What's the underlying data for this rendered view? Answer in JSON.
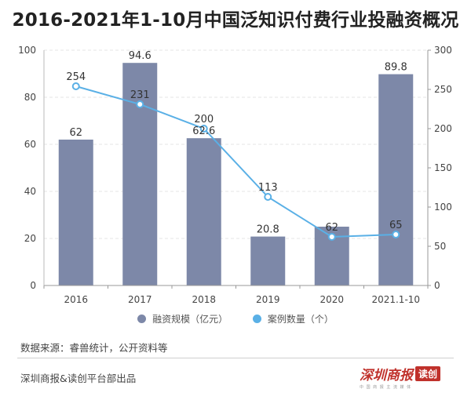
{
  "title": "2016-2021年1-10月中国泛知识付费行业投融资概况",
  "legend": {
    "bar_label": "融资规模（亿元）",
    "line_label": "案例数量（个）"
  },
  "source_note": "数据来源：睿兽统计，公开资料等",
  "footer": {
    "publisher": "深圳商报&读创平台部出品",
    "logo_text": "深圳商报",
    "logo_tag": "读创",
    "logo_sub": "中 国 商 报 主 流 媒 体"
  },
  "colors": {
    "bar": "#7d88a8",
    "line": "#5ab0e6",
    "grid": "#e6e6e6",
    "axis_text": "#444444"
  },
  "chart_data": {
    "type": "bar",
    "categories": [
      "2016",
      "2017",
      "2018",
      "2019",
      "2020",
      "2021.1-10"
    ],
    "series": [
      {
        "name": "融资规模（亿元）",
        "type": "bar",
        "axis": "left",
        "values": [
          62,
          94.6,
          62.6,
          20.8,
          25,
          89.8
        ],
        "labels": [
          "62",
          "94.6",
          "62.6",
          "20.8",
          "",
          "89.8"
        ]
      },
      {
        "name": "案例数量（个）",
        "type": "line",
        "axis": "right",
        "values": [
          254,
          231,
          200,
          113,
          62,
          65
        ],
        "labels": [
          "254",
          "231",
          "200",
          "113",
          "62",
          "65"
        ]
      }
    ],
    "y_left": {
      "min": 0,
      "max": 100,
      "ticks": [
        0,
        20,
        40,
        60,
        80,
        100
      ]
    },
    "y_right": {
      "min": 0,
      "max": 300,
      "ticks": [
        0,
        50,
        100,
        150,
        200,
        250,
        300
      ]
    },
    "grid": true,
    "legend_position": "bottom"
  }
}
